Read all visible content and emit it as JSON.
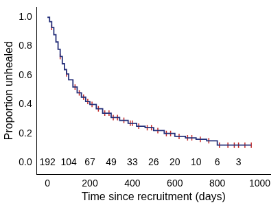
{
  "chart_data": {
    "type": "line",
    "xlabel": "Time since recruitment (days)",
    "ylabel": "Proportion unhealed",
    "xlim": [
      -50,
      1050
    ],
    "xticks": [
      0,
      200,
      400,
      600,
      800,
      1000
    ],
    "ylim": [
      -0.08,
      1.07
    ],
    "yticks": [
      {
        "value": 0,
        "label": "0.0"
      },
      0.2,
      0.4,
      0.6,
      0.8,
      {
        "value": 1,
        "label": "1.0"
      }
    ],
    "grid": false,
    "series": [
      {
        "type": "line",
        "line_style": "step",
        "color": "#26307a",
        "x": [
          0,
          10,
          20,
          30,
          40,
          50,
          60,
          70,
          80,
          90,
          100,
          120,
          140,
          160,
          180,
          200,
          230,
          260,
          300,
          340,
          380,
          420,
          460,
          500,
          550,
          600,
          650,
          700,
          750,
          800,
          960
        ],
        "values": [
          1.0,
          0.97,
          0.93,
          0.88,
          0.83,
          0.78,
          0.73,
          0.68,
          0.64,
          0.61,
          0.57,
          0.52,
          0.48,
          0.45,
          0.42,
          0.4,
          0.37,
          0.34,
          0.31,
          0.29,
          0.27,
          0.25,
          0.24,
          0.22,
          0.2,
          0.18,
          0.17,
          0.16,
          0.15,
          0.12,
          0.12
        ]
      },
      {
        "type": "scatter",
        "marker": "vline",
        "color": "#c42a2a",
        "x": [
          20,
          60,
          90,
          130,
          150,
          170,
          190,
          210,
          240,
          270,
          290,
          310,
          330,
          360,
          390,
          400,
          430,
          470,
          490,
          520,
          560,
          580,
          620,
          660,
          680,
          720,
          760,
          810,
          850,
          880,
          900,
          930,
          960
        ],
        "values": [
          0.93,
          0.73,
          0.61,
          0.52,
          0.48,
          0.45,
          0.42,
          0.4,
          0.37,
          0.34,
          0.34,
          0.31,
          0.31,
          0.29,
          0.27,
          0.27,
          0.25,
          0.24,
          0.24,
          0.22,
          0.2,
          0.2,
          0.18,
          0.17,
          0.17,
          0.16,
          0.15,
          0.12,
          0.12,
          0.12,
          0.12,
          0.12,
          0.12
        ]
      }
    ],
    "at_risk": {
      "x": [
        0,
        100,
        200,
        300,
        400,
        500,
        600,
        700,
        800,
        900
      ],
      "values": [
        192,
        104,
        67,
        49,
        33,
        26,
        20,
        10,
        6,
        3
      ]
    }
  }
}
